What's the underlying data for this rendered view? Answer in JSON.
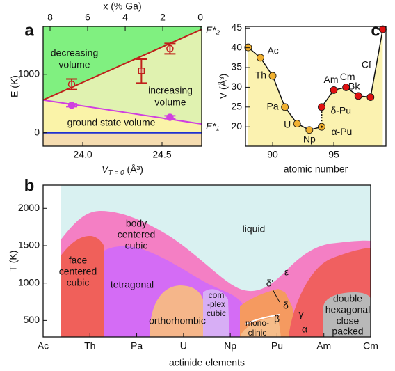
{
  "chart_data": [
    {
      "type": "line",
      "label": "a",
      "xlabel": [
        "V",
        "T = 0",
        "(Å³)"
      ],
      "ylabel": "E (K)",
      "x2label": "x (% Ga)",
      "xlim": [
        23.75,
        24.75
      ],
      "xticks": [
        {
          "value": 24,
          "label": "24.0"
        },
        24.5
      ],
      "x2lim": [
        8.37,
        -0.07
      ],
      "x2ticks": [
        8,
        6,
        4,
        2,
        0
      ],
      "ylim": [
        -230,
        1820
      ],
      "yticks": [
        0,
        1000
      ],
      "x": [
        23.75,
        24.75
      ],
      "series": [
        {
          "name": "E*₂",
          "color": "#c0201a",
          "values": [
            560,
            1770
          ]
        },
        {
          "name": "E*₁",
          "color": "#d040e0",
          "values": [
            560,
            150
          ]
        },
        {
          "color": "#2030d0",
          "values": [
            0,
            0
          ]
        }
      ],
      "region_colors": [
        "#80f080",
        "#e0f2b0",
        "#faf3a8",
        "#f5dcb0"
      ],
      "points": [
        {
          "color": "#c0201a",
          "filled": false,
          "x": [
            23.93,
            24.37,
            24.55
          ],
          "values": [
            830,
            1060,
            1440
          ],
          "err_low": [
            90,
            210,
            90
          ],
          "err_high": [
            90,
            200,
            90
          ],
          "markers": [
            "circle",
            "square",
            "circle"
          ]
        },
        {
          "color": "#d040e0",
          "filled": true,
          "x": [
            23.93,
            24.55
          ],
          "values": [
            470,
            265
          ],
          "err_low": [
            25,
            25
          ],
          "err_high": [
            25,
            25
          ],
          "markers": [
            "circle",
            "circle"
          ]
        }
      ],
      "annotations": [
        [
          "decreasing",
          "volume"
        ],
        [
          "increasing",
          "volume"
        ],
        [
          "ground state volume"
        ]
      ]
    },
    {
      "type": "area",
      "label": "b",
      "categories": [
        "Ac",
        "Th",
        "Pa",
        "U",
        "Np",
        "Pu",
        "Am",
        "Cm"
      ],
      "xlabel": "actinide elements",
      "ylabel": "T (K)",
      "ylim": [
        280,
        2310
      ],
      "yticks": [
        500,
        1000,
        1500,
        2000
      ],
      "phases": [
        [
          "liquid"
        ],
        [
          "body",
          "centered",
          "cubic"
        ],
        [
          "face",
          "centered",
          "cubic"
        ],
        [
          "tetragonal"
        ],
        [
          "orthorhombic"
        ],
        [
          "com",
          "-plex",
          "cubic"
        ],
        [
          "mono-",
          "clinic"
        ],
        [
          "double",
          "hexagonal",
          "close",
          "packed"
        ],
        [
          "ε"
        ],
        [
          "δ'"
        ],
        [
          "δ"
        ],
        [
          "γ"
        ],
        [
          "β"
        ],
        [
          "α"
        ]
      ]
    },
    {
      "type": "line",
      "label": "c",
      "xlabel": "atomic number",
      "ylabel": "V (Å³)",
      "xlim": [
        87.78,
        99.26
      ],
      "xticks": [
        90,
        95
      ],
      "ylim": [
        15.1,
        45.4
      ],
      "yticks": [
        20,
        25,
        30,
        35,
        40,
        45
      ],
      "fill": "#fbf2b0",
      "series": [
        {
          "color": "#f0b030",
          "x": [
            88,
            89,
            90,
            91,
            92,
            93,
            94
          ],
          "values": [
            40.1,
            37.5,
            32.9,
            25.0,
            20.8,
            19.2,
            20.0
          ],
          "point_labels": [
            null,
            "Ac",
            "Th",
            "Pa",
            "U",
            "Np",
            "α-Pu"
          ]
        },
        {
          "color": "#e01010",
          "x": [
            94,
            95,
            96,
            97,
            98,
            99
          ],
          "values": [
            25.0,
            29.3,
            30.0,
            27.8,
            27.5,
            44.7
          ],
          "point_labels": [
            "δ-Pu",
            "Am",
            "Cm",
            "Bk",
            "Cf",
            null
          ]
        }
      ]
    }
  ]
}
